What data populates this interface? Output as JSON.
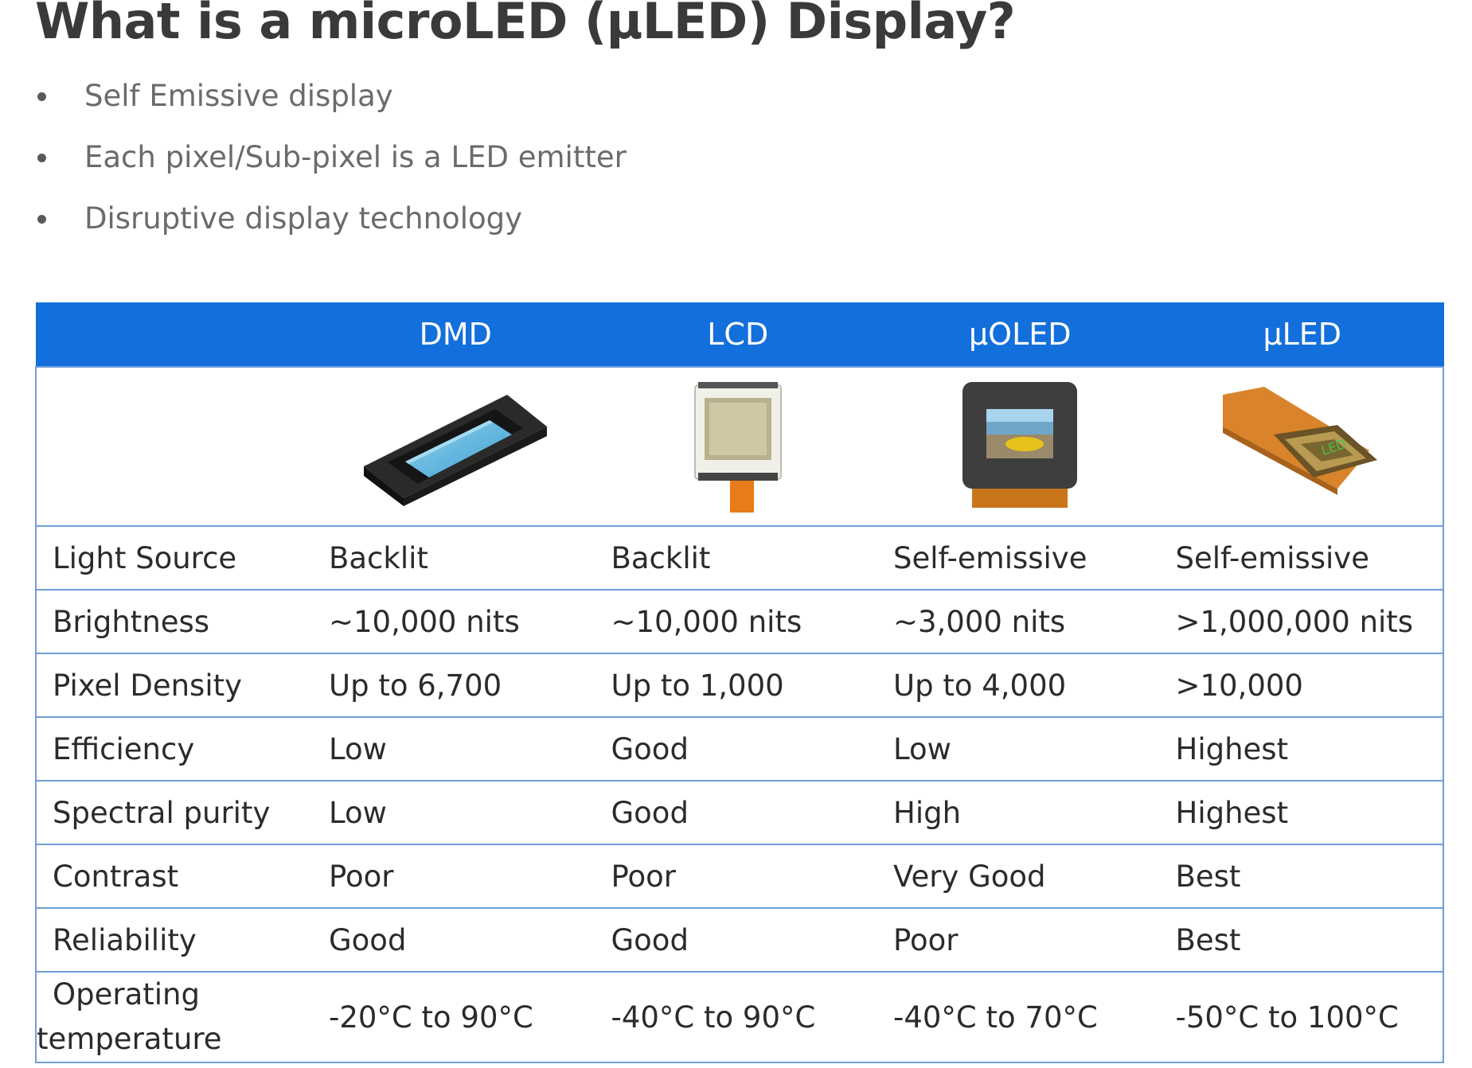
{
  "title": "What is a microLED (μLED) Display?",
  "bullets": [
    "Self Emissive display",
    "Each pixel/Sub-pixel is a LED emitter",
    "Disruptive display technology"
  ],
  "table": {
    "headers": [
      "",
      "DMD",
      "LCD",
      "μOLED",
      "μLED"
    ],
    "rows": [
      {
        "label": "Light Source",
        "values": [
          "Backlit",
          "Backlit",
          "Self-emissive",
          "Self-emissive"
        ]
      },
      {
        "label": "Brightness",
        "values": [
          "~10,000 nits",
          "~10,000 nits",
          "~3,000 nits",
          ">1,000,000 nits"
        ]
      },
      {
        "label": "Pixel Density",
        "values": [
          "Up to 6,700",
          "Up to 1,000",
          "Up to 4,000",
          ">10,000"
        ]
      },
      {
        "label": "Efficiency",
        "values": [
          "Low",
          "Good",
          "Low",
          "Highest"
        ]
      },
      {
        "label": "Spectral purity",
        "values": [
          "Low",
          "Good",
          "High",
          "Highest"
        ]
      },
      {
        "label": "Contrast",
        "values": [
          "Poor",
          "Poor",
          "Very Good",
          "Best"
        ]
      },
      {
        "label": "Reliability",
        "values": [
          "Good",
          "Good",
          "Poor",
          "Best"
        ]
      },
      {
        "label": "Operating temperature",
        "values": [
          "-20°C  to 90°C",
          "-40°C  to 90°C",
          "-40°C  to 70°C",
          "-50°C  to 100°C"
        ]
      }
    ]
  },
  "images": {
    "dmd": "dmd-chip-icon",
    "lcd": "lcd-panel-icon",
    "uoled": "micro-oled-display-icon",
    "uled": "micro-led-chip-icon"
  },
  "colors": {
    "header_bg": "#136fdb",
    "grid": "#6f9fd8",
    "title": "#3a3a3a",
    "bullet_text": "#6b6b6b"
  }
}
